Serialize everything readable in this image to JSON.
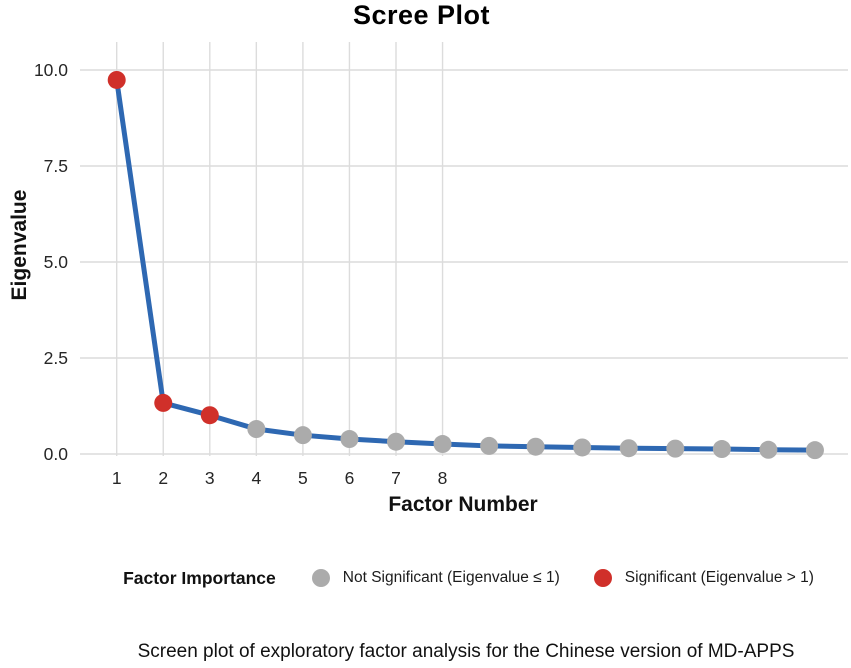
{
  "title": "Scree Plot",
  "chart_data": {
    "type": "line",
    "title": "Scree Plot",
    "xlabel": "Factor Number",
    "ylabel": "Eigenvalue",
    "x": [
      1,
      2,
      3,
      4,
      5,
      6,
      7,
      8,
      9,
      10,
      11,
      12,
      13,
      14,
      15,
      16
    ],
    "values": [
      9.74,
      1.33,
      1.01,
      0.65,
      0.49,
      0.39,
      0.32,
      0.26,
      0.21,
      0.19,
      0.17,
      0.15,
      0.14,
      0.13,
      0.11,
      0.1
    ],
    "significance_threshold": 1,
    "xtick_labels": [
      "1",
      "2",
      "3",
      "4",
      "5",
      "6",
      "7",
      "8"
    ],
    "ytick_labels": [
      "0.0",
      "2.5",
      "5.0",
      "7.5",
      "10.0"
    ],
    "ytick_values": [
      0,
      2.5,
      5,
      7.5,
      10
    ],
    "ylim": [
      0,
      10.7
    ],
    "grid": "major",
    "legend_position": "bottom"
  },
  "legend": {
    "title": "Factor Importance",
    "items": [
      {
        "label": "Not Significant (Eigenvalue ≤ 1)",
        "color": "#ABABAB"
      },
      {
        "label": "Significant (Eigenvalue > 1)",
        "color": "#D0302A"
      }
    ]
  },
  "caption": "Screen plot of exploratory factor analysis for the Chinese version of MD-APPS",
  "colors": {
    "line": "#2E68B2",
    "significant": "#D0302A",
    "not_significant": "#ABABAB",
    "gridline": "#DCDCDC",
    "tick_text": "#262626",
    "title_text": "#000000"
  }
}
